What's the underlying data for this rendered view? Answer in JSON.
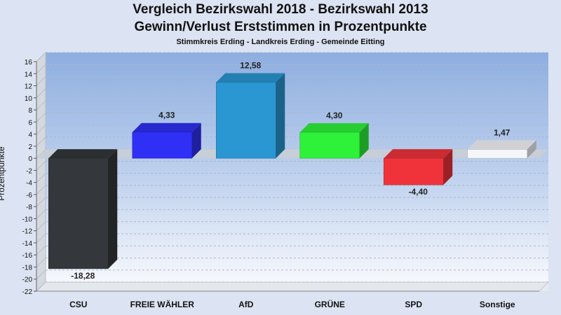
{
  "chart_data": {
    "type": "bar",
    "title": "Vergleich Bezirkswahl 2018 - Bezirkswahl 2013",
    "subtitle": "Gewinn/Verlust Erststimmen in Prozentpunkte",
    "subsubtitle": "Stimmkreis Erding - Landkreis Erding - Gemeinde Eitting",
    "ylabel": "Prozentpunkte",
    "xlabel": "",
    "ylim": [
      -22,
      16
    ],
    "yticks": [
      16,
      14,
      12,
      10,
      8,
      6,
      4,
      2,
      0,
      -2,
      -4,
      -6,
      -8,
      -10,
      -12,
      -14,
      -16,
      -18,
      -20,
      -22
    ],
    "categories": [
      "CSU",
      "FREIE WÄHLER",
      "AfD",
      "GRÜNE",
      "SPD",
      "Sonstige"
    ],
    "values": [
      -18.28,
      4.33,
      12.58,
      4.3,
      -4.4,
      1.47
    ],
    "value_labels": [
      "-18,28",
      "4,33",
      "12,58",
      "4,30",
      "-4,40",
      "1,47"
    ],
    "colors": [
      "#34373b",
      "#2f2ff5",
      "#2a96d2",
      "#2ef23a",
      "#f0333b",
      "#f4f6fa"
    ],
    "grid": true,
    "legend": "none"
  }
}
